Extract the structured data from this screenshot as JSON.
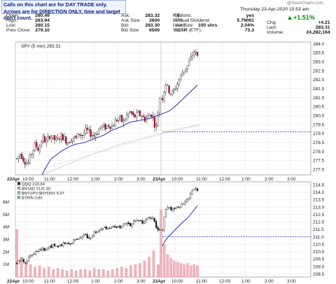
{
  "header": {
    "note_line1": "Calls on this chart are for DAY TRADE only.",
    "note_line2": "Arrows are for DIRECTION ONLY, time and target don't count.",
    "date": "Thursday 23-Apr-2020 10:53 am",
    "watermark": "@StockCharts.com",
    "rows1": [
      [
        "Open:",
        "280.49"
      ],
      [
        "High:",
        "283.94"
      ],
      [
        "Low:",
        "280.15"
      ],
      [
        "Prev Close:",
        "279.10"
      ]
    ],
    "rows2": [
      [
        "Ask:",
        "283.32"
      ],
      [
        "Ask Size:",
        "2600"
      ],
      [
        "Bid:",
        "283.30"
      ],
      [
        "Bid Size:",
        "6500"
      ]
    ],
    "rows3": [
      [
        "P/E:",
        ""
      ],
      [
        "EPS:",
        ""
      ],
      [
        "Last Size:",
        "100 shrs"
      ],
      [
        "VWAP:",
        ""
      ]
    ],
    "rows4": [
      [
        "Options:",
        "yes"
      ],
      [
        "Annual Dividend:",
        "5.79081"
      ],
      [
        "Yield:",
        "2.04%"
      ],
      [
        "SCTR (ETF):",
        "73.3"
      ]
    ],
    "rows5": [
      [
        "Chg:",
        "+4.21"
      ],
      [
        "Last:",
        "283.31"
      ],
      [
        "Volume:",
        "24,282,164"
      ]
    ],
    "pct_change": "+1.51%",
    "up_color": "#0a8a0a"
  },
  "chart_data": [
    {
      "type": "candlestick",
      "title": "SPY (5 min) 283.31",
      "x_tick_labels": [
        "22Apr",
        "10:00",
        "11:00",
        "12:00",
        "1:00",
        "2:00",
        "3:00",
        "23Apr",
        "10:00",
        "11:00",
        "12:00",
        "1:00",
        "2:00",
        "3:00"
      ],
      "y_tick_labels": [
        "277.0",
        "277.5",
        "278.0",
        "278.5",
        "279.0",
        "279.5",
        "280.0",
        "280.5",
        "281.0",
        "281.5",
        "282.0",
        "282.5",
        "283.0",
        "283.5",
        "284.0"
      ],
      "ylim": [
        276.7,
        284.1
      ],
      "reference_line": 279.1,
      "close_path": [
        277.6,
        277.9,
        277.5,
        277.3,
        277.9,
        278.4,
        278.1,
        278.8,
        278.5,
        278.9,
        278.7,
        278.6,
        278.9,
        278.7,
        278.5,
        278.8,
        278.7,
        279.0,
        278.9,
        279.2,
        279.0,
        278.9,
        279.1,
        279.4,
        279.3,
        279.5,
        279.4,
        279.7,
        279.9,
        279.6,
        280.0,
        280.2,
        279.9,
        280.1,
        280.0,
        279.8,
        280.0,
        280.1,
        279.2,
        281.0,
        281.8,
        281.4,
        281.2,
        281.5,
        281.9,
        282.3,
        282.6,
        282.8,
        283.2,
        283.6,
        283.3
      ],
      "wma_path": [
        276.7,
        277.2,
        277.6,
        277.8,
        278.0,
        278.15,
        278.3,
        278.4,
        278.45,
        278.5,
        278.6,
        278.7,
        278.8,
        278.9,
        279.05,
        279.2,
        279.3,
        279.4,
        279.55,
        279.65,
        279.7,
        279.75,
        279.8,
        279.85,
        279.95,
        280.05,
        280.15,
        280.25,
        280.45,
        280.7,
        280.95,
        281.2,
        281.45,
        281.7
      ],
      "slow_path": [
        276.7,
        277.0,
        277.3,
        277.6,
        277.9,
        278.15,
        278.4,
        278.6,
        278.8,
        279.0,
        279.2,
        279.35,
        279.5
      ],
      "faint_path": [
        277.0,
        277.3,
        277.55,
        277.8,
        278.05,
        278.3,
        278.55,
        278.8,
        279.05,
        279.25,
        279.45
      ]
    },
    {
      "type": "candlestick+volume",
      "legend": [
        "QQQ 213.94",
        "$NYAD 2131.00",
        "$NYUPV:$NYDNV 5.97",
        "$TRIN 0.80"
      ],
      "x_tick_labels": [
        "22Apr",
        "10:00",
        "11:00",
        "12:00",
        "1:00",
        "2:00",
        "3:00",
        "23Apr",
        "10:00",
        "11:00",
        "12:00",
        "1:00",
        "2:00",
        "3:00"
      ],
      "y_tick_labels": [
        "208.5",
        "209.0",
        "209.5",
        "210.0",
        "210.5",
        "211.0",
        "211.5",
        "212.0",
        "212.5",
        "213.0",
        "213.5",
        "214.0",
        "214.5"
      ],
      "volume_tick_labels": [
        "1M",
        "2M",
        "3M",
        "4M",
        "5M",
        "6M"
      ],
      "ylim": [
        208.3,
        214.7
      ],
      "reference_line": 211.0,
      "close_path": [
        209.2,
        209.5,
        209.3,
        209.6,
        209.9,
        210.1,
        210.2,
        210.1,
        210.3,
        210.4,
        210.3,
        210.5,
        210.6,
        210.5,
        210.8,
        210.9,
        211.0,
        211.1,
        210.9,
        211.3,
        211.4,
        211.5,
        211.6,
        211.5,
        211.7,
        211.6,
        211.8,
        211.9,
        211.7,
        212.0,
        212.1,
        211.9,
        212.2,
        212.3,
        212.1,
        211.2,
        212.6,
        213.0,
        212.8,
        212.9,
        213.1,
        212.9,
        213.2,
        213.4,
        213.7,
        213.9,
        214.3,
        214.1
      ],
      "ma_path": [
        210.4,
        210.75,
        211.0,
        211.2,
        211.4,
        211.6,
        211.8,
        212.0,
        212.15,
        212.35,
        212.6,
        212.85,
        213.1
      ],
      "volume_millions": [
        3.8,
        1.6,
        1.2,
        1.0,
        0.8,
        0.9,
        0.7,
        0.8,
        0.6,
        0.7,
        0.6,
        0.5,
        0.6,
        0.5,
        0.6,
        0.6,
        0.5,
        0.7,
        0.6,
        0.6,
        0.5,
        0.6,
        0.7,
        0.8,
        0.7,
        0.9,
        1.0,
        1.1,
        1.3,
        1.6,
        2.1,
        1.0,
        5.4,
        2.6,
        1.8,
        1.5,
        1.3,
        1.2,
        1.1,
        1.0,
        1.1,
        0.9,
        1.0,
        0.9
      ]
    }
  ]
}
